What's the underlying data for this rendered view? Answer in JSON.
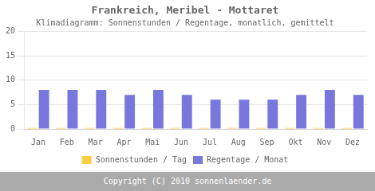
{
  "chart_data": {
    "type": "bar",
    "title": "Frankreich, Meribel - Mottaret",
    "subtitle": "Klimadiagramm: Sonnenstunden / Regentage, monatlich, gemittelt",
    "annotations": [
      "Copyright (C) 2010 sonnenlaender.de"
    ],
    "categories": [
      "Jan",
      "Feb",
      "Mar",
      "Apr",
      "Mai",
      "Jun",
      "Jul",
      "Aug",
      "Sep",
      "Okt",
      "Nov",
      "Dez"
    ],
    "series": [
      {
        "name": "Sonnenstunden / Tag",
        "color": "#FFCC44",
        "values": [
          0.2,
          0.2,
          0.2,
          0.2,
          0.2,
          0.2,
          0.2,
          0.2,
          0.2,
          0.2,
          0.2,
          0.2
        ]
      },
      {
        "name": "Regentage / Monat",
        "color": "#7777DD",
        "values": [
          8,
          8,
          8,
          7,
          8,
          7,
          6,
          6,
          6,
          7,
          8,
          7
        ]
      }
    ],
    "ylim": [
      0,
      20
    ],
    "yticks": [
      0,
      5,
      10,
      15,
      20
    ],
    "grid": true,
    "legend": "bottom"
  }
}
